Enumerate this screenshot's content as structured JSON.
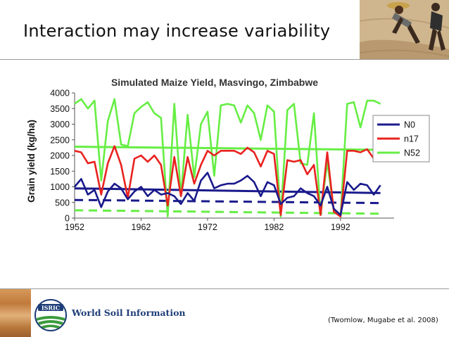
{
  "slide": {
    "title": "Interaction may increase variability",
    "citation": "(Twomlow, Mugabe et al. 2008)",
    "logo_text": "World Soil Information",
    "logo_badge": "ISRIC"
  },
  "colors": {
    "N0": "#1a1a8c",
    "n17": "#e8231f",
    "N52": "#66ee44",
    "logo_blue": "#1e3d78",
    "logo_green": "#3c9a3c"
  },
  "chart_data": {
    "type": "line",
    "title": "Simulated Maize Yield, Masvingo, Zimbabwe",
    "xlabel": "",
    "ylabel": "Grain yield (kg/ha)",
    "xlim": [
      1952,
      1999
    ],
    "ylim": [
      0,
      4000
    ],
    "x_ticks": [
      "1952",
      "1962",
      "1972",
      "1982",
      "1992"
    ],
    "y_ticks": [
      "0",
      "500",
      "1000",
      "1500",
      "2000",
      "2500",
      "3000",
      "3500",
      "4000"
    ],
    "legend_position": "right",
    "x": [
      1952,
      1953,
      1954,
      1955,
      1956,
      1957,
      1958,
      1959,
      1960,
      1961,
      1962,
      1963,
      1964,
      1965,
      1966,
      1967,
      1968,
      1969,
      1970,
      1971,
      1972,
      1973,
      1974,
      1975,
      1976,
      1977,
      1978,
      1979,
      1980,
      1981,
      1982,
      1983,
      1984,
      1985,
      1986,
      1987,
      1988,
      1989,
      1990,
      1991,
      1992,
      1993,
      1994,
      1995,
      1996,
      1997,
      1998
    ],
    "series": [
      {
        "name": "N0",
        "values": [
          1000,
          1250,
          750,
          900,
          350,
          850,
          1100,
          950,
          600,
          850,
          1000,
          700,
          900,
          750,
          800,
          700,
          450,
          800,
          550,
          1200,
          1450,
          950,
          1050,
          1100,
          1100,
          1200,
          1350,
          1150,
          700,
          1150,
          1050,
          450,
          650,
          700,
          950,
          800,
          700,
          400,
          1000,
          300,
          100,
          1150,
          900,
          1100,
          1050,
          750,
          1050
        ]
      },
      {
        "name": "n17",
        "values": [
          2150,
          2100,
          1750,
          1800,
          750,
          1750,
          2300,
          1700,
          650,
          1900,
          2000,
          1800,
          2000,
          1700,
          400,
          1950,
          700,
          1950,
          1100,
          1700,
          2150,
          2000,
          2150,
          2150,
          2150,
          2050,
          2250,
          2100,
          1650,
          2150,
          2050,
          100,
          1850,
          1800,
          1850,
          1400,
          1700,
          100,
          2100,
          200,
          50,
          2150,
          2150,
          2100,
          2200,
          1900,
          2000
        ]
      },
      {
        "name": "N52",
        "values": [
          3650,
          3800,
          3500,
          3750,
          1200,
          3100,
          3800,
          2350,
          2300,
          3350,
          3550,
          3700,
          3350,
          3200,
          50,
          3650,
          700,
          3300,
          1300,
          3000,
          3400,
          1350,
          3600,
          3650,
          3600,
          3050,
          3600,
          3350,
          2500,
          3600,
          3400,
          50,
          3450,
          3650,
          1750,
          1700,
          3350,
          100,
          1800,
          250,
          50,
          3650,
          3700,
          2900,
          3750,
          3750,
          3650
        ]
      }
    ],
    "trend_lines": [
      {
        "series": "N0",
        "style": "solid",
        "x": [
          1952,
          1998
        ],
        "y": [
          950,
          800
        ]
      },
      {
        "series": "N0",
        "style": "dashed",
        "x": [
          1952,
          1998
        ],
        "y": [
          580,
          480
        ]
      },
      {
        "series": "N52",
        "style": "solid",
        "x": [
          1952,
          1998
        ],
        "y": [
          2280,
          2180
        ]
      },
      {
        "series": "N52",
        "style": "dashed",
        "x": [
          1952,
          1998
        ],
        "y": [
          250,
          140
        ]
      }
    ]
  }
}
